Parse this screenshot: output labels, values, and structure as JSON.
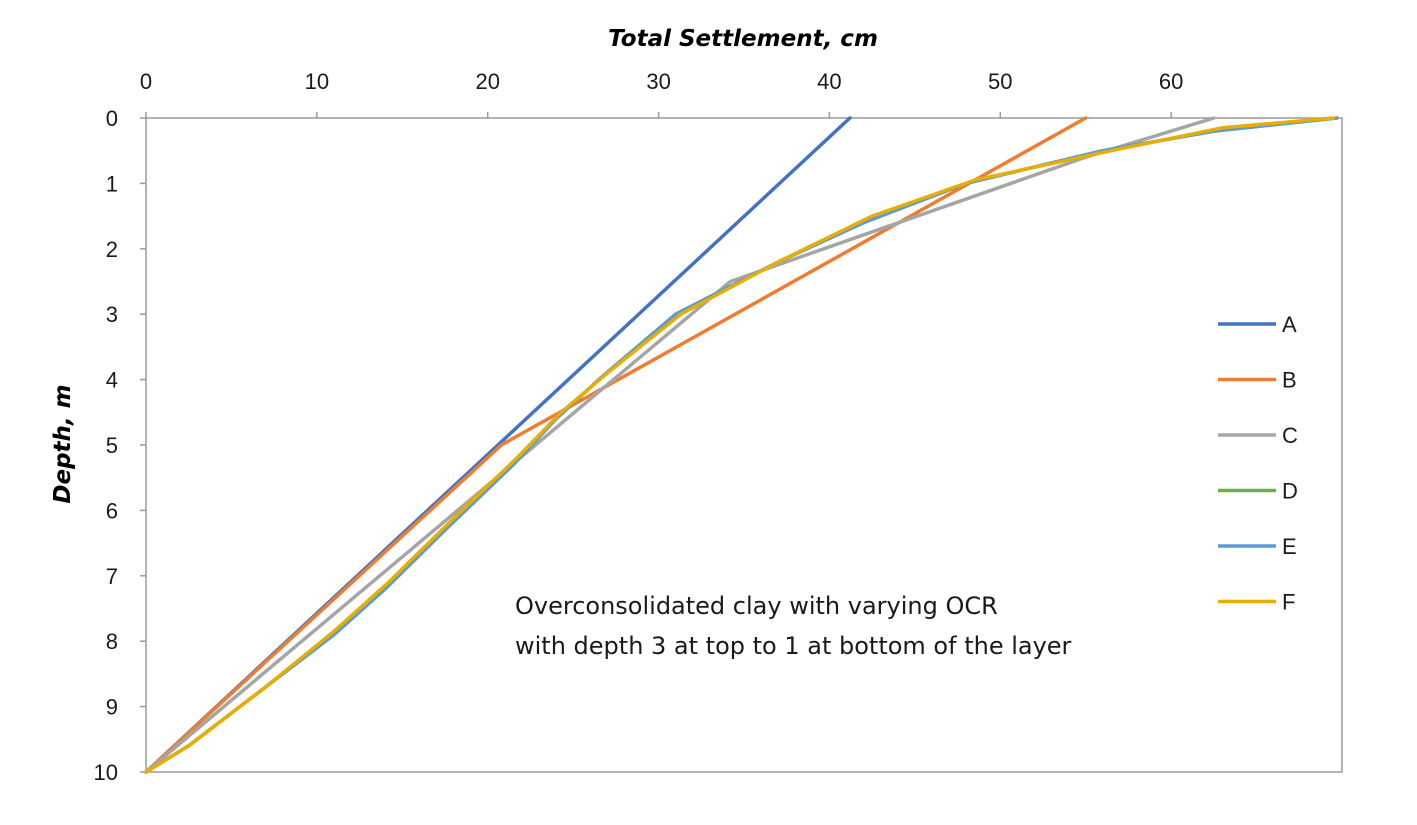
{
  "chart_data": {
    "type": "line",
    "xlabel": "Total Settlement, cm",
    "ylabel": "Depth, m",
    "xlim": [
      0,
      70
    ],
    "ylim": [
      0,
      10
    ],
    "x_ticks": [
      0,
      10,
      20,
      30,
      40,
      50,
      60
    ],
    "y_ticks": [
      0,
      1,
      2,
      3,
      4,
      5,
      6,
      7,
      8,
      9,
      10
    ],
    "x_axis_position": "top",
    "y_axis_inverted": true,
    "grid": false,
    "legend_position": "right",
    "annotation": [
      "Overconsolidated clay with varying OCR",
      "with depth 3 at top to 1 at bottom of the layer"
    ],
    "series": [
      {
        "name": "A",
        "color": "#4472C4",
        "points": [
          [
            41.2,
            0
          ],
          [
            0,
            10
          ]
        ]
      },
      {
        "name": "B",
        "color": "#ED7D31",
        "points": [
          [
            55,
            0
          ],
          [
            20.8,
            5
          ],
          [
            0,
            10
          ]
        ]
      },
      {
        "name": "C",
        "color": "#A5A5A5",
        "points": [
          [
            62.5,
            0
          ],
          [
            55,
            0.6
          ],
          [
            34.2,
            2.5
          ],
          [
            0,
            10
          ]
        ]
      },
      {
        "name": "D",
        "color": "#70AD47",
        "points": [
          [
            69.7,
            0
          ],
          [
            62.5,
            0.2
          ],
          [
            56,
            0.5
          ],
          [
            48,
            1.0
          ],
          [
            42,
            1.6
          ],
          [
            37,
            2.2
          ],
          [
            31,
            3.0
          ],
          [
            26.5,
            4.0
          ],
          [
            24,
            4.6
          ],
          [
            21.5,
            5.3
          ],
          [
            17.5,
            6.3
          ],
          [
            14,
            7.2
          ],
          [
            11,
            7.9
          ],
          [
            7,
            8.7
          ],
          [
            2.5,
            9.6
          ],
          [
            0,
            10
          ]
        ]
      },
      {
        "name": "E",
        "color": "#5B9BD5",
        "points": [
          [
            69.7,
            0
          ],
          [
            62.5,
            0.2
          ],
          [
            56,
            0.5
          ],
          [
            48,
            1.0
          ],
          [
            42,
            1.6
          ],
          [
            37,
            2.2
          ],
          [
            31,
            3.0
          ],
          [
            26.5,
            4.0
          ],
          [
            24,
            4.6
          ],
          [
            21.5,
            5.3
          ],
          [
            17.5,
            6.3
          ],
          [
            14,
            7.2
          ],
          [
            11,
            7.9
          ],
          [
            7,
            8.7
          ],
          [
            2.5,
            9.6
          ],
          [
            0,
            10
          ]
        ]
      },
      {
        "name": "F",
        "color": "#E6AE00",
        "points": [
          [
            69.5,
            0
          ],
          [
            63,
            0.15
          ],
          [
            56.5,
            0.5
          ],
          [
            48.5,
            0.95
          ],
          [
            42.5,
            1.5
          ],
          [
            37,
            2.2
          ],
          [
            31.3,
            3.0
          ],
          [
            27,
            3.9
          ],
          [
            24.3,
            4.5
          ],
          [
            21.7,
            5.2
          ],
          [
            17.7,
            6.2
          ],
          [
            14.2,
            7.1
          ],
          [
            11,
            7.85
          ],
          [
            7,
            8.7
          ],
          [
            2.5,
            9.6
          ],
          [
            0,
            10
          ]
        ]
      }
    ]
  }
}
